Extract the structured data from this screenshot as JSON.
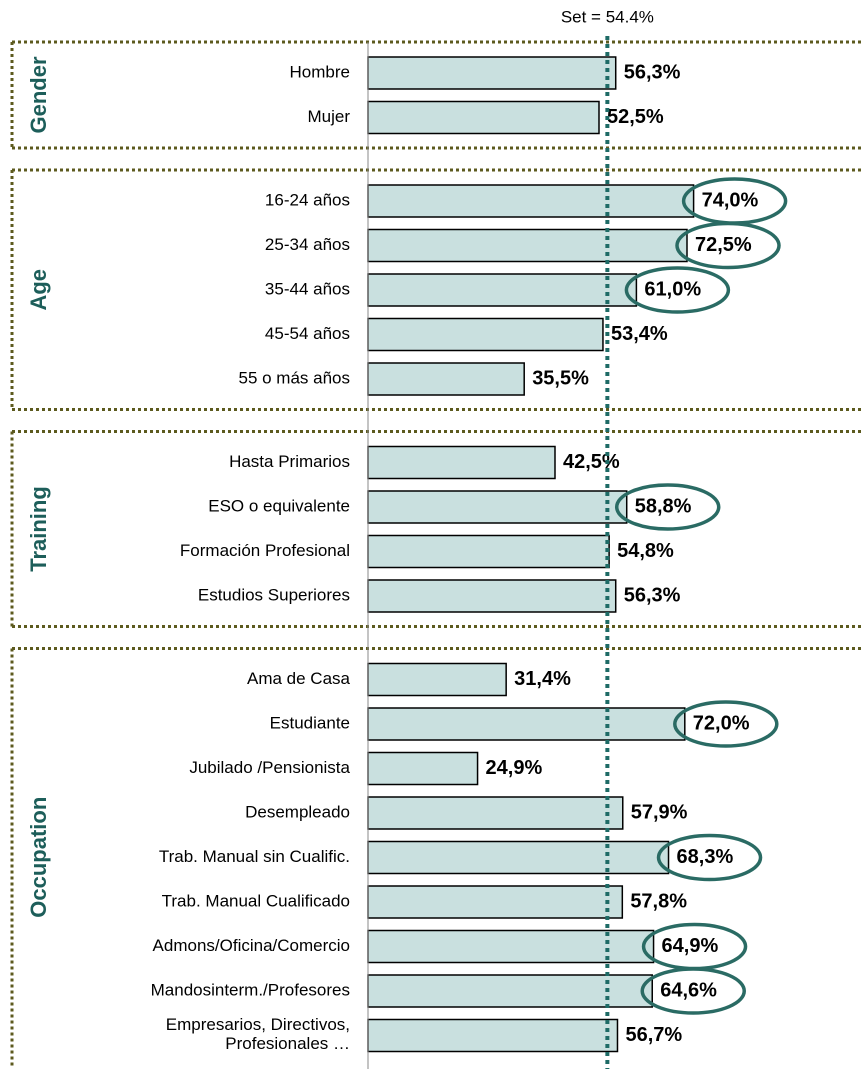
{
  "chart_data": {
    "type": "bar",
    "orientation": "horizontal",
    "color": "#c9e0df",
    "highlight_color": "#2a6b64",
    "reference": {
      "label": "Set = 54.4%",
      "value": 54.4,
      "color": "#1e6b66"
    },
    "xlim": [
      0,
      75
    ],
    "groups": [
      {
        "name": "Gender",
        "categories": [
          "Hombre",
          "Mujer"
        ],
        "values": [
          56.3,
          52.5
        ],
        "value_labels": [
          "56,3%",
          "52,5%"
        ],
        "highlight": [
          false,
          false
        ]
      },
      {
        "name": "Age",
        "categories": [
          "16-24 años",
          "25-34 años",
          "35-44 años",
          "45-54 años",
          "55 o más años"
        ],
        "values": [
          74.0,
          72.5,
          61.0,
          53.4,
          35.5
        ],
        "value_labels": [
          "74,0%",
          "72,5%",
          "61,0%",
          "53,4%",
          "35,5%"
        ],
        "highlight": [
          true,
          true,
          true,
          false,
          false
        ]
      },
      {
        "name": "Training",
        "categories": [
          "Hasta Primarios",
          "ESO o equivalente",
          "Formación Profesional",
          "Estudios Superiores"
        ],
        "values": [
          42.5,
          58.8,
          54.8,
          56.3
        ],
        "value_labels": [
          "42,5%",
          "58,8%",
          "54,8%",
          "56,3%"
        ],
        "highlight": [
          false,
          true,
          false,
          false
        ]
      },
      {
        "name": "Occupation",
        "categories": [
          "Ama de Casa",
          "Estudiante",
          "Jubilado /Pensionista",
          "Desempleado",
          "Trab. Manual sin Cualific.",
          "Trab. Manual Cualificado",
          "Admons/Oficina/Comercio",
          "Mandosinterm./Profesores",
          "Empresarios, Directivos,\nProfesionales …"
        ],
        "values": [
          31.4,
          72.0,
          24.9,
          57.9,
          68.3,
          57.8,
          64.9,
          64.6,
          56.7
        ],
        "value_labels": [
          "31,4%",
          "72,0%",
          "24,9%",
          "57,9%",
          "68,3%",
          "57,8%",
          "64,9%",
          "64,6%",
          "56,7%"
        ],
        "highlight": [
          false,
          true,
          false,
          false,
          true,
          false,
          true,
          true,
          false
        ]
      }
    ]
  }
}
